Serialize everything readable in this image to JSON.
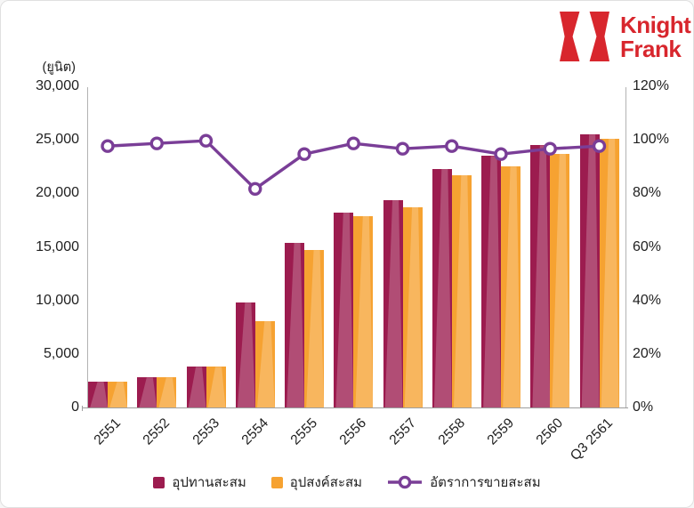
{
  "brand": {
    "line1": "Knight",
    "line2": "Frank",
    "color": "#d8262d"
  },
  "chart_data": {
    "type": "bar",
    "title": "",
    "categories": [
      "2551",
      "2552",
      "2553",
      "2554",
      "2555",
      "2556",
      "2557",
      "2558",
      "2559",
      "2560",
      "Q3 2561"
    ],
    "series": [
      {
        "name": "อุปทานสะสม",
        "type": "bar",
        "axis": "left",
        "color": "#9c1c4f",
        "values": [
          2400,
          2800,
          3800,
          9800,
          15400,
          18200,
          19400,
          22300,
          23500,
          24500,
          25500
        ]
      },
      {
        "name": "อุปสงค์สะสม",
        "type": "bar",
        "axis": "left",
        "color": "#f6a231",
        "values": [
          2400,
          2800,
          3800,
          8100,
          14700,
          17900,
          18700,
          21700,
          22500,
          23700,
          25100
        ]
      },
      {
        "name": "อัตราการขายสะสม",
        "type": "line",
        "axis": "right",
        "color": "#7a3e97",
        "values": [
          98,
          99,
          100,
          82,
          95,
          99,
          97,
          98,
          95,
          97,
          98
        ]
      }
    ],
    "left_axis": {
      "unit_label": "(ยูนิต)",
      "min": 0,
      "max": 30000,
      "ticks": [
        "30,000",
        "25,000",
        "20,000",
        "15,000",
        "10,000",
        "5,000",
        "0"
      ]
    },
    "right_axis": {
      "min": 0,
      "max": 120,
      "ticks": [
        "120%",
        "100%",
        "80%",
        "60%",
        "40%",
        "20%",
        "0%"
      ]
    },
    "grid": false,
    "legend_position": "bottom"
  }
}
